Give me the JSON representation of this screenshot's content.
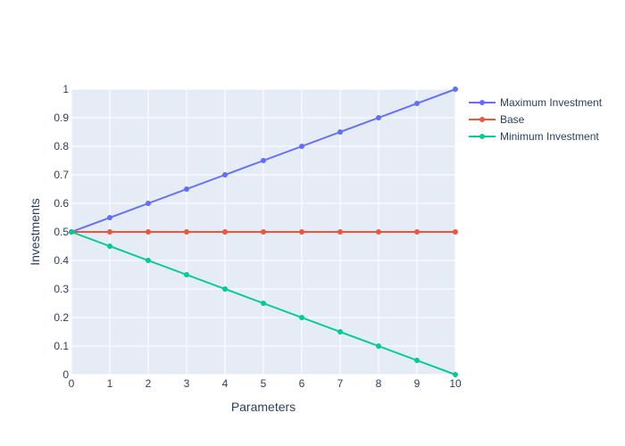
{
  "chart_data": {
    "type": "line",
    "title": "",
    "xlabel": "Parameters",
    "ylabel": "Investments",
    "x": [
      0,
      1,
      2,
      3,
      4,
      5,
      6,
      7,
      8,
      9,
      10
    ],
    "xlim": [
      0,
      10
    ],
    "ylim": [
      0,
      1
    ],
    "xticks": [
      "0",
      "1",
      "2",
      "3",
      "4",
      "5",
      "6",
      "7",
      "8",
      "9",
      "10"
    ],
    "yticks": [
      "0",
      "0.1",
      "0.2",
      "0.3",
      "0.4",
      "0.5",
      "0.6",
      "0.7",
      "0.8",
      "0.9",
      "1"
    ],
    "grid": true,
    "legend_position": "top-right",
    "plot_background": "#e5ecf6",
    "series": [
      {
        "name": "Maximum Investment",
        "color": "#636efa",
        "values": [
          0.5,
          0.55,
          0.6,
          0.65,
          0.7,
          0.75,
          0.8,
          0.85,
          0.9,
          0.95,
          1.0
        ]
      },
      {
        "name": "Base",
        "color": "#ef553b",
        "values": [
          0.5,
          0.5,
          0.5,
          0.5,
          0.5,
          0.5,
          0.5,
          0.5,
          0.5,
          0.5,
          0.5
        ]
      },
      {
        "name": "Minimum Investment",
        "color": "#00cc96",
        "values": [
          0.5,
          0.45,
          0.4,
          0.35,
          0.3,
          0.25,
          0.2,
          0.15,
          0.1,
          0.05,
          0.0
        ]
      }
    ]
  }
}
